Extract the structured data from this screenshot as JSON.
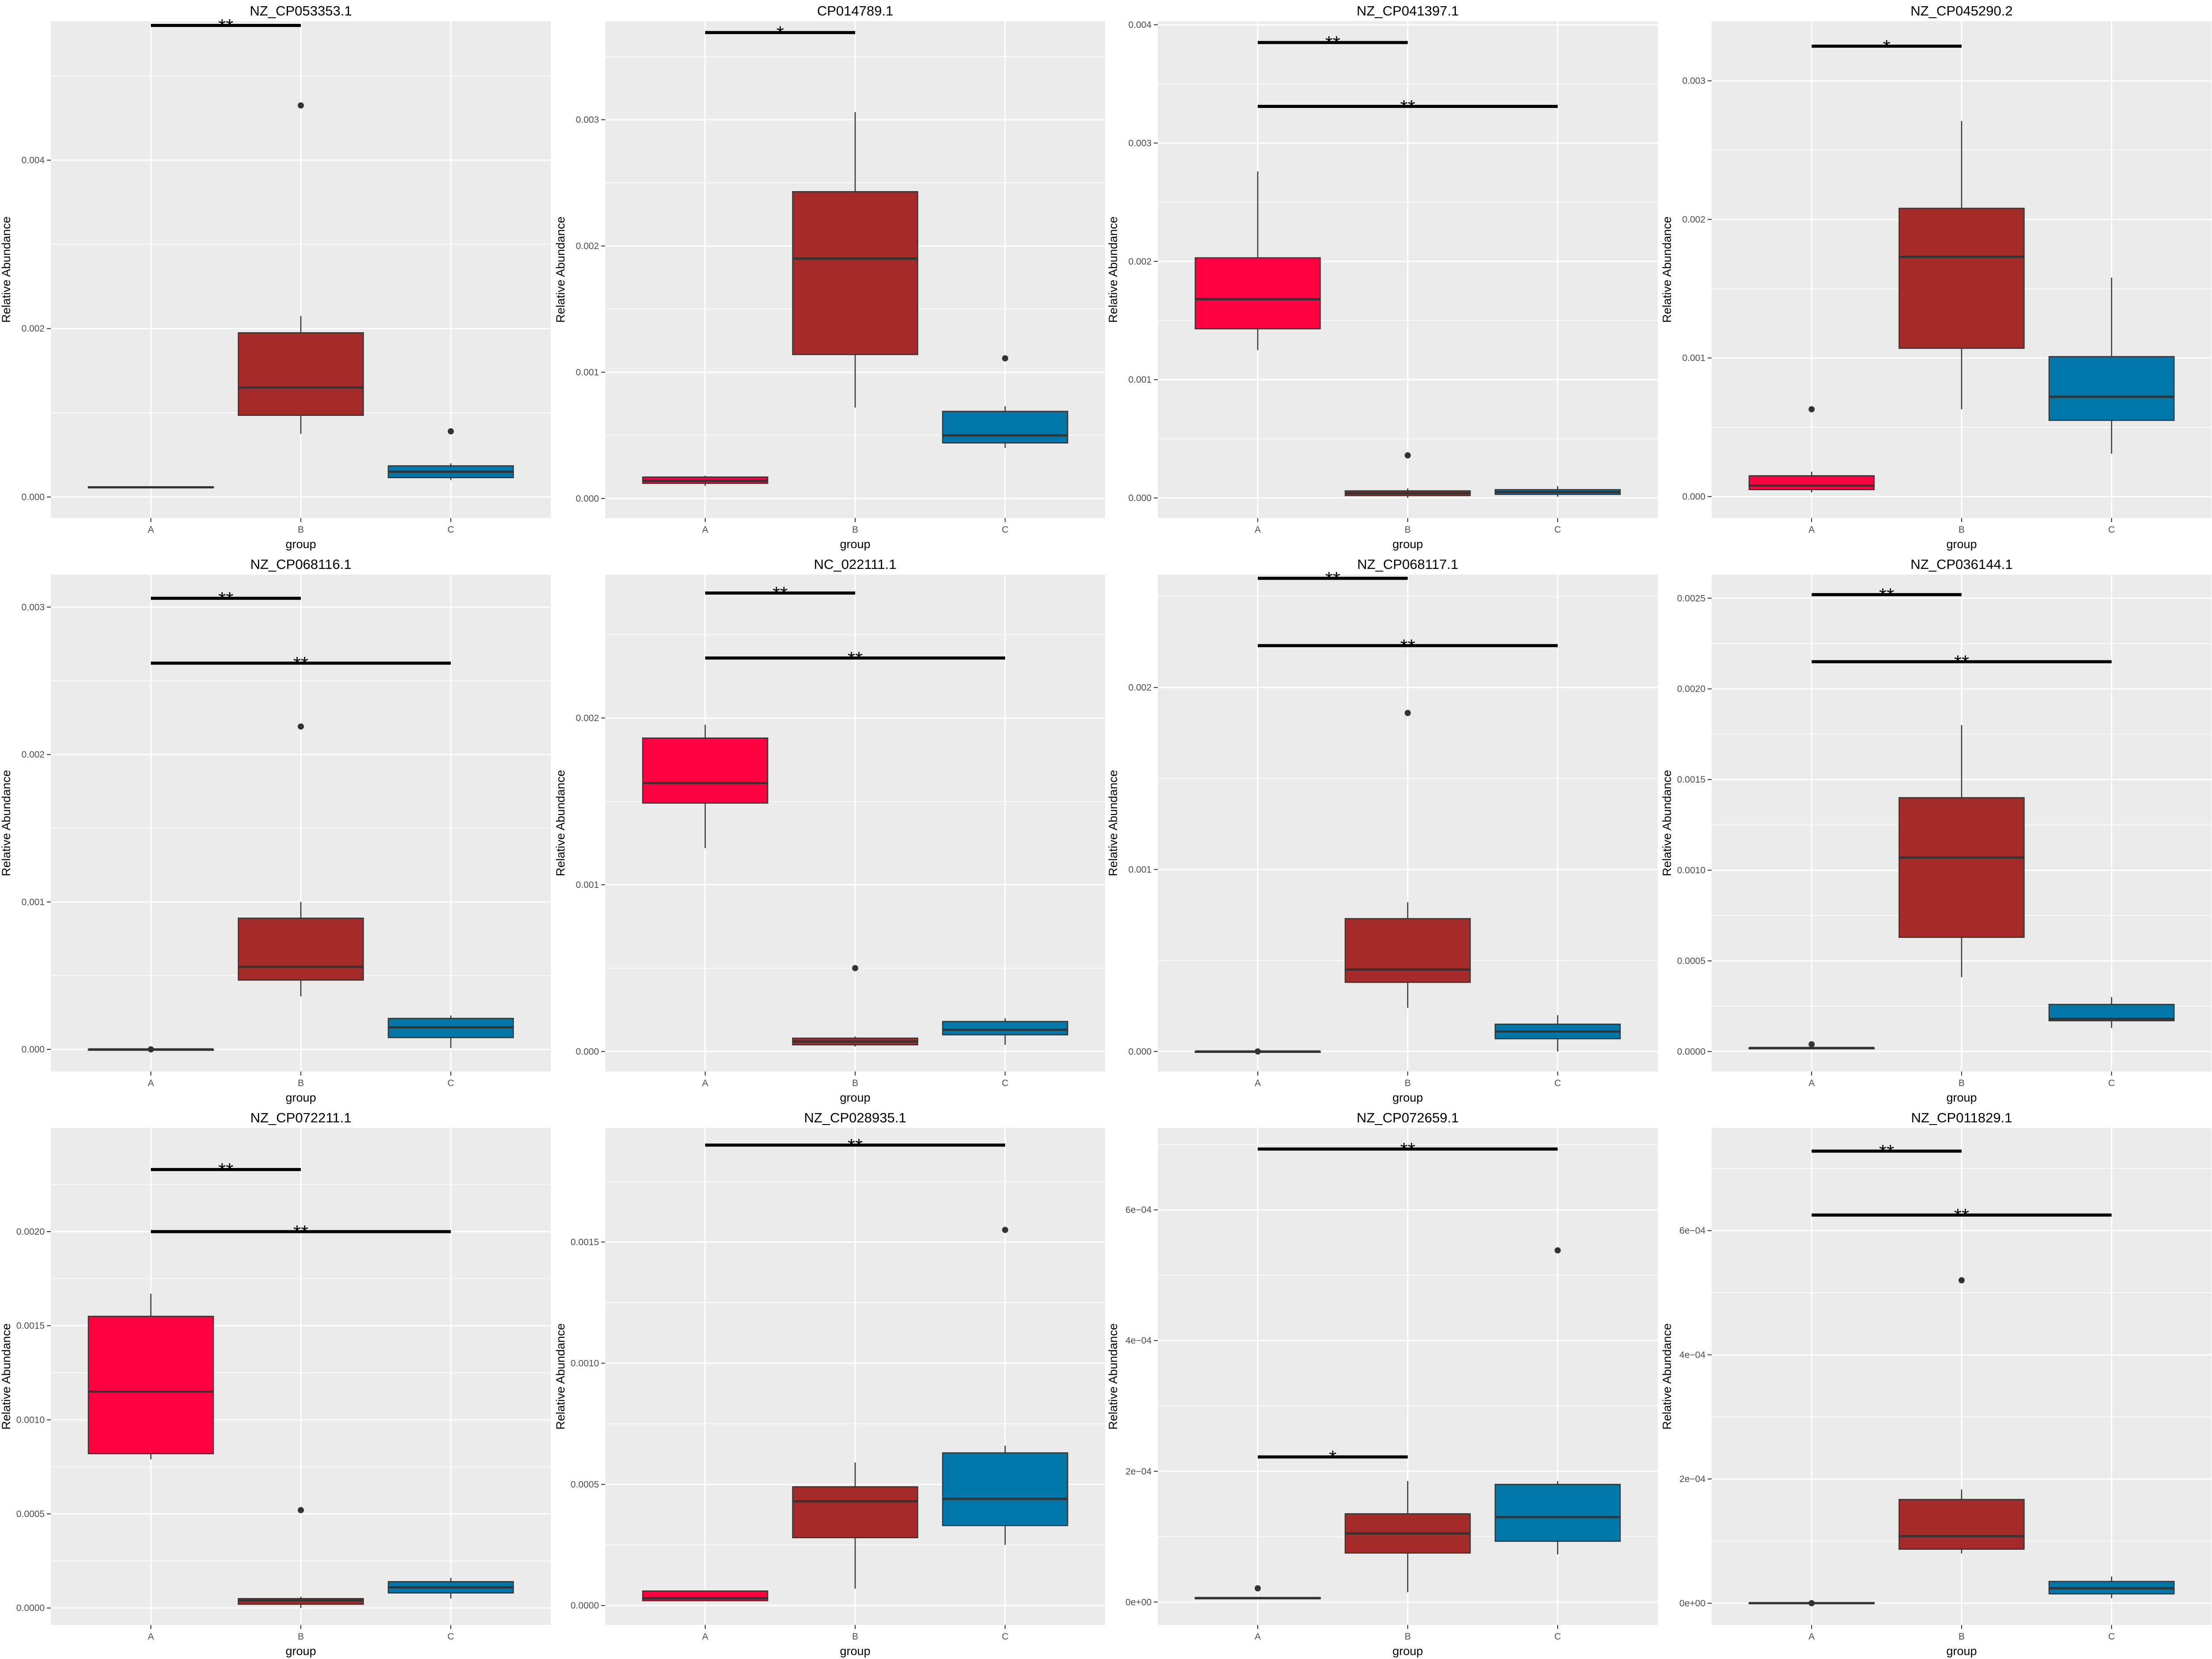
{
  "shared": {
    "ylabel": "Relative Abundance",
    "xlabel": "group",
    "groups": [
      "A",
      "B",
      "C"
    ],
    "group_colors": {
      "A": "#ff0040",
      "B": "#a52a2a",
      "C": "#0077a8"
    },
    "panel_background": "#ebebeb",
    "grid_color": "#ffffff"
  },
  "chart_data": [
    {
      "type": "box",
      "title": "NZ_CP053353.1",
      "ylim": [
        -0.00025,
        0.00565
      ],
      "yticks": [
        0.0,
        0.002,
        0.004
      ],
      "ytick_labels": [
        "0.000",
        "0.002",
        "0.004"
      ],
      "boxes": [
        {
          "group": "A",
          "q1": 0.00011,
          "median": 0.000115,
          "q3": 0.00012,
          "whisker_low": 0.00011,
          "whisker_high": 0.00012,
          "outliers": []
        },
        {
          "group": "B",
          "q1": 0.00097,
          "median": 0.0013,
          "q3": 0.00195,
          "whisker_low": 0.00075,
          "whisker_high": 0.00215,
          "outliers": [
            0.00465
          ]
        },
        {
          "group": "C",
          "q1": 0.00023,
          "median": 0.0003,
          "q3": 0.00037,
          "whisker_low": 0.0002,
          "whisker_high": 0.0004,
          "outliers": [
            0.00078
          ]
        }
      ],
      "significance": [
        {
          "from": "A",
          "to": "B",
          "y": 0.0056,
          "label": "**"
        }
      ]
    },
    {
      "type": "box",
      "title": "CP014789.1",
      "ylim": [
        -0.000155,
        0.00378
      ],
      "yticks": [
        0.0,
        0.001,
        0.002,
        0.003
      ],
      "ytick_labels": [
        "0.000",
        "0.001",
        "0.002",
        "0.003"
      ],
      "boxes": [
        {
          "group": "A",
          "q1": 0.00012,
          "median": 0.00014,
          "q3": 0.00017,
          "whisker_low": 0.0001,
          "whisker_high": 0.00018,
          "outliers": []
        },
        {
          "group": "B",
          "q1": 0.00114,
          "median": 0.0019,
          "q3": 0.00243,
          "whisker_low": 0.00072,
          "whisker_high": 0.00306,
          "outliers": []
        },
        {
          "group": "C",
          "q1": 0.00044,
          "median": 0.0005,
          "q3": 0.00069,
          "whisker_low": 0.0004,
          "whisker_high": 0.00073,
          "outliers": [
            0.00111
          ]
        }
      ],
      "significance": [
        {
          "from": "A",
          "to": "B",
          "y": 0.00369,
          "label": "*"
        }
      ]
    },
    {
      "type": "box",
      "title": "NZ_CP041397.1",
      "ylim": [
        -0.00017,
        0.00403
      ],
      "yticks": [
        0.0,
        0.001,
        0.002,
        0.003,
        0.004
      ],
      "ytick_labels": [
        "0.000",
        "0.001",
        "0.002",
        "0.003",
        "0.004"
      ],
      "boxes": [
        {
          "group": "A",
          "q1": 0.00143,
          "median": 0.00168,
          "q3": 0.00203,
          "whisker_low": 0.00125,
          "whisker_high": 0.00276,
          "outliers": []
        },
        {
          "group": "B",
          "q1": 2e-05,
          "median": 4e-05,
          "q3": 6e-05,
          "whisker_low": 0.0,
          "whisker_high": 8e-05,
          "outliers": [
            0.00036
          ]
        },
        {
          "group": "C",
          "q1": 3e-05,
          "median": 5e-05,
          "q3": 7e-05,
          "whisker_low": 1e-05,
          "whisker_high": 0.0001,
          "outliers": []
        }
      ],
      "significance": [
        {
          "from": "A",
          "to": "B",
          "y": 0.00385,
          "label": "**"
        },
        {
          "from": "A",
          "to": "C",
          "y": 0.00331,
          "label": "**"
        }
      ]
    },
    {
      "type": "box",
      "title": "NZ_CP045290.2",
      "ylim": [
        -0.000155,
        0.00343
      ],
      "yticks": [
        0.0,
        0.001,
        0.002,
        0.003
      ],
      "ytick_labels": [
        "0.000",
        "0.001",
        "0.002",
        "0.003"
      ],
      "boxes": [
        {
          "group": "A",
          "q1": 5e-05,
          "median": 8e-05,
          "q3": 0.00015,
          "whisker_low": 3e-05,
          "whisker_high": 0.00018,
          "outliers": [
            0.00063
          ]
        },
        {
          "group": "B",
          "q1": 0.00107,
          "median": 0.00173,
          "q3": 0.00208,
          "whisker_low": 0.00063,
          "whisker_high": 0.00271,
          "outliers": []
        },
        {
          "group": "C",
          "q1": 0.00055,
          "median": 0.00072,
          "q3": 0.00101,
          "whisker_low": 0.00031,
          "whisker_high": 0.00158,
          "outliers": []
        }
      ],
      "significance": [
        {
          "from": "A",
          "to": "B",
          "y": 0.00325,
          "label": "*"
        }
      ]
    },
    {
      "type": "box",
      "title": "NZ_CP068116.1",
      "ylim": [
        -0.00015,
        0.00322
      ],
      "yticks": [
        0.0,
        0.001,
        0.002,
        0.003
      ],
      "ytick_labels": [
        "0.000",
        "0.001",
        "0.002",
        "0.003"
      ],
      "boxes": [
        {
          "group": "A",
          "q1": 0.0,
          "median": 0.0,
          "q3": 0.0,
          "whisker_low": 0.0,
          "whisker_high": 0.0,
          "outliers": [
            0.0
          ]
        },
        {
          "group": "B",
          "q1": 0.00047,
          "median": 0.00056,
          "q3": 0.00089,
          "whisker_low": 0.00036,
          "whisker_high": 0.001,
          "outliers": [
            0.00219
          ]
        },
        {
          "group": "C",
          "q1": 8e-05,
          "median": 0.00015,
          "q3": 0.00021,
          "whisker_low": 1e-05,
          "whisker_high": 0.00023,
          "outliers": []
        }
      ],
      "significance": [
        {
          "from": "A",
          "to": "B",
          "y": 0.00306,
          "label": "**"
        },
        {
          "from": "A",
          "to": "C",
          "y": 0.00262,
          "label": "**"
        }
      ]
    },
    {
      "type": "box",
      "title": "NC_022111.1",
      "ylim": [
        -0.00012,
        0.00286
      ],
      "yticks": [
        0.0,
        0.001,
        0.002
      ],
      "ytick_labels": [
        "0.000",
        "0.001",
        "0.002"
      ],
      "boxes": [
        {
          "group": "A",
          "q1": 0.00149,
          "median": 0.00161,
          "q3": 0.00188,
          "whisker_low": 0.00122,
          "whisker_high": 0.00196,
          "outliers": []
        },
        {
          "group": "B",
          "q1": 4e-05,
          "median": 6e-05,
          "q3": 8e-05,
          "whisker_low": 3e-05,
          "whisker_high": 9e-05,
          "outliers": [
            0.0005
          ]
        },
        {
          "group": "C",
          "q1": 0.0001,
          "median": 0.00013,
          "q3": 0.00018,
          "whisker_low": 4e-05,
          "whisker_high": 0.0002,
          "outliers": []
        }
      ],
      "significance": [
        {
          "from": "A",
          "to": "B",
          "y": 0.00275,
          "label": "**"
        },
        {
          "from": "A",
          "to": "C",
          "y": 0.00236,
          "label": "**"
        }
      ]
    },
    {
      "type": "box",
      "title": "NZ_CP068117.1",
      "ylim": [
        -0.00011,
        0.00262
      ],
      "yticks": [
        0.0,
        0.001,
        0.002
      ],
      "ytick_labels": [
        "0.000",
        "0.001",
        "0.002"
      ],
      "boxes": [
        {
          "group": "A",
          "q1": 0.0,
          "median": 0.0,
          "q3": 0.0,
          "whisker_low": 0.0,
          "whisker_high": 0.0,
          "outliers": [
            0.0
          ]
        },
        {
          "group": "B",
          "q1": 0.00038,
          "median": 0.00045,
          "q3": 0.00073,
          "whisker_low": 0.00024,
          "whisker_high": 0.00082,
          "outliers": [
            0.00186
          ]
        },
        {
          "group": "C",
          "q1": 7e-05,
          "median": 0.00011,
          "q3": 0.00015,
          "whisker_low": 0.0,
          "whisker_high": 0.0002,
          "outliers": []
        }
      ],
      "significance": [
        {
          "from": "A",
          "to": "B",
          "y": 0.0026,
          "label": "**"
        },
        {
          "from": "A",
          "to": "C",
          "y": 0.00223,
          "label": "**"
        }
      ]
    },
    {
      "type": "box",
      "title": "NZ_CP036144.1",
      "ylim": [
        -0.00011,
        0.00263
      ],
      "yticks": [
        0.0,
        0.0005,
        0.001,
        0.0015,
        0.002,
        0.0025
      ],
      "ytick_labels": [
        "0.0000",
        "0.0005",
        "0.0010",
        "0.0015",
        "0.0020",
        "0.0025"
      ],
      "boxes": [
        {
          "group": "A",
          "q1": 2e-05,
          "median": 2e-05,
          "q3": 2e-05,
          "whisker_low": 2e-05,
          "whisker_high": 3e-05,
          "outliers": [
            4e-05
          ]
        },
        {
          "group": "B",
          "q1": 0.00063,
          "median": 0.00107,
          "q3": 0.0014,
          "whisker_low": 0.00041,
          "whisker_high": 0.0018,
          "outliers": []
        },
        {
          "group": "C",
          "q1": 0.00017,
          "median": 0.00018,
          "q3": 0.00026,
          "whisker_low": 0.00013,
          "whisker_high": 0.0003,
          "outliers": []
        }
      ],
      "significance": [
        {
          "from": "A",
          "to": "B",
          "y": 0.00252,
          "label": "**"
        },
        {
          "from": "A",
          "to": "C",
          "y": 0.00215,
          "label": "**"
        }
      ]
    },
    {
      "type": "box",
      "title": "NZ_CP072211.1",
      "ylim": [
        -9e-05,
        0.00255
      ],
      "yticks": [
        0.0,
        0.0005,
        0.001,
        0.0015,
        0.002
      ],
      "ytick_labels": [
        "0.0000",
        "0.0005",
        "0.0010",
        "0.0015",
        "0.0020"
      ],
      "boxes": [
        {
          "group": "A",
          "q1": 0.00082,
          "median": 0.00115,
          "q3": 0.00155,
          "whisker_low": 0.00079,
          "whisker_high": 0.00167,
          "outliers": []
        },
        {
          "group": "B",
          "q1": 2e-05,
          "median": 4e-05,
          "q3": 5e-05,
          "whisker_low": 0.0,
          "whisker_high": 6e-05,
          "outliers": [
            0.00052
          ]
        },
        {
          "group": "C",
          "q1": 8e-05,
          "median": 0.00011,
          "q3": 0.00014,
          "whisker_low": 5e-05,
          "whisker_high": 0.00016,
          "outliers": []
        }
      ],
      "significance": [
        {
          "from": "A",
          "to": "B",
          "y": 0.00233,
          "label": "**"
        },
        {
          "from": "A",
          "to": "C",
          "y": 0.002,
          "label": "**"
        }
      ]
    },
    {
      "type": "box",
      "title": "NZ_CP028935.1",
      "ylim": [
        -8e-05,
        0.00197
      ],
      "yticks": [
        0.0,
        0.0005,
        0.001,
        0.0015
      ],
      "ytick_labels": [
        "0.0000",
        "0.0005",
        "0.0010",
        "0.0015"
      ],
      "boxes": [
        {
          "group": "A",
          "q1": 2e-05,
          "median": 3e-05,
          "q3": 6e-05,
          "whisker_low": 2e-05,
          "whisker_high": 6e-05,
          "outliers": []
        },
        {
          "group": "B",
          "q1": 0.00028,
          "median": 0.00043,
          "q3": 0.00049,
          "whisker_low": 7e-05,
          "whisker_high": 0.00059,
          "outliers": []
        },
        {
          "group": "C",
          "q1": 0.00033,
          "median": 0.00044,
          "q3": 0.00063,
          "whisker_low": 0.00025,
          "whisker_high": 0.00066,
          "outliers": [
            0.00155
          ]
        }
      ],
      "significance": [
        {
          "from": "A",
          "to": "C",
          "y": 0.0019,
          "label": "**"
        }
      ]
    },
    {
      "type": "box",
      "title": "NZ_CP072659.1",
      "ylim": [
        -3.5e-05,
        0.000725
      ],
      "yticks": [
        0.0,
        0.0002,
        0.0004,
        0.0006
      ],
      "ytick_labels": [
        "0e+00",
        "2e−04",
        "4e−04",
        "6e−04"
      ],
      "boxes": [
        {
          "group": "A",
          "q1": 5e-06,
          "median": 6e-06,
          "q3": 7e-06,
          "whisker_low": 5e-06,
          "whisker_high": 7e-06,
          "outliers": [
            2.1e-05
          ]
        },
        {
          "group": "B",
          "q1": 7.5e-05,
          "median": 0.000105,
          "q3": 0.000135,
          "whisker_low": 1.5e-05,
          "whisker_high": 0.000185,
          "outliers": []
        },
        {
          "group": "C",
          "q1": 9.3e-05,
          "median": 0.00013,
          "q3": 0.00018,
          "whisker_low": 7.3e-05,
          "whisker_high": 0.000185,
          "outliers": [
            0.000538
          ]
        }
      ],
      "significance": [
        {
          "from": "A",
          "to": "C",
          "y": 0.000693,
          "label": "**"
        },
        {
          "from": "A",
          "to": "B",
          "y": 0.000222,
          "label": "*"
        }
      ]
    },
    {
      "type": "box",
      "title": "NZ_CP011829.1",
      "ylim": [
        -3.5e-05,
        0.000765
      ],
      "yticks": [
        0.0,
        0.0002,
        0.0004,
        0.0006
      ],
      "ytick_labels": [
        "0e+00",
        "2e−04",
        "4e−04",
        "6e−04"
      ],
      "boxes": [
        {
          "group": "A",
          "q1": 0.0,
          "median": 0.0,
          "q3": 1e-06,
          "whisker_low": 0.0,
          "whisker_high": 1e-06,
          "outliers": [
            0.0
          ]
        },
        {
          "group": "B",
          "q1": 8.7e-05,
          "median": 0.000108,
          "q3": 0.000167,
          "whisker_low": 8e-05,
          "whisker_high": 0.000183,
          "outliers": [
            0.00052
          ]
        },
        {
          "group": "C",
          "q1": 1.5e-05,
          "median": 2.4e-05,
          "q3": 3.5e-05,
          "whisker_low": 8e-06,
          "whisker_high": 4.3e-05,
          "outliers": []
        }
      ],
      "significance": [
        {
          "from": "A",
          "to": "B",
          "y": 0.000728,
          "label": "**"
        },
        {
          "from": "A",
          "to": "C",
          "y": 0.000625,
          "label": "**"
        }
      ]
    }
  ]
}
